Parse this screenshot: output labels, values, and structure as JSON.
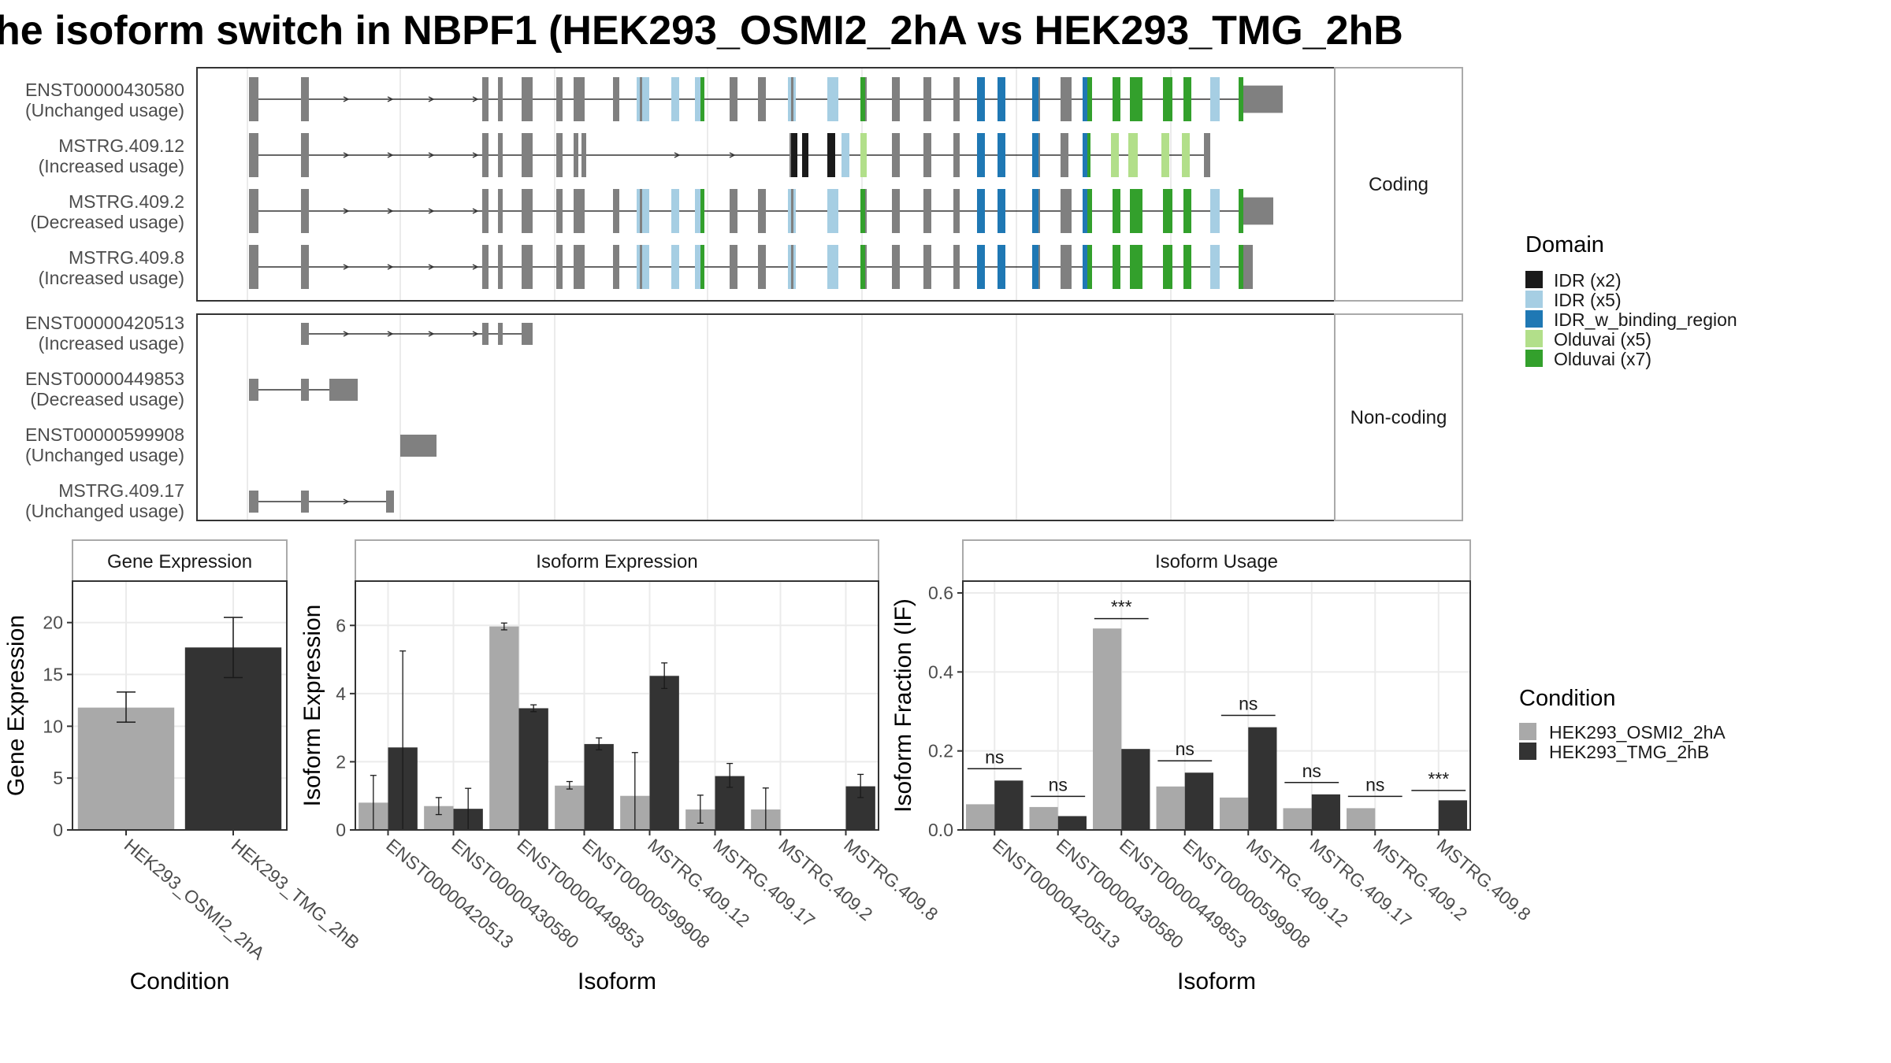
{
  "title": "he isoform switch in NBPF1 (HEK293_OSMI2_2hA vs HEK293_TMG_2hB",
  "colors": {
    "condA": "#a9a9a9",
    "condB": "#333333",
    "exon": "#808080",
    "intron": "#333333",
    "panel_border": "#333333",
    "strip_border": "#aaaaaa",
    "grid": "#ebebeb"
  },
  "legend_domain": {
    "title": "Domain",
    "items": [
      {
        "label": "IDR (x2)",
        "color": "#1a1a1a"
      },
      {
        "label": "IDR (x5)",
        "color": "#a6cee3"
      },
      {
        "label": "IDR_w_binding_region",
        "color": "#1f78b4"
      },
      {
        "label": "Olduvai (x5)",
        "color": "#b2df8a"
      },
      {
        "label": "Olduvai (x7)",
        "color": "#33a02c"
      }
    ]
  },
  "legend_condition": {
    "title": "Condition",
    "items": [
      {
        "label": "HEK293_OSMI2_2hA",
        "color": "#a9a9a9"
      },
      {
        "label": "HEK293_TMG_2hB",
        "color": "#333333"
      }
    ]
  },
  "structure_panels": {
    "coding_label": "Coding",
    "noncoding_label": "Non-coding",
    "coding": [
      {
        "name": "ENST00000430580",
        "usage": "(Unchanged usage)"
      },
      {
        "name": "MSTRG.409.12",
        "usage": "(Increased usage)"
      },
      {
        "name": "MSTRG.409.2",
        "usage": "(Decreased usage)"
      },
      {
        "name": "MSTRG.409.8",
        "usage": "(Increased usage)"
      }
    ],
    "noncoding": [
      {
        "name": "ENST00000420513",
        "usage": "(Increased usage)"
      },
      {
        "name": "ENST00000449853",
        "usage": "(Decreased usage)"
      },
      {
        "name": "ENST00000599908",
        "usage": "(Unchanged usage)"
      },
      {
        "name": "MSTRG.409.17",
        "usage": "(Unchanged usage)"
      }
    ]
  },
  "chart_data": [
    {
      "type": "bar",
      "strip": "Gene Expression",
      "xlabel": "Condition",
      "ylabel": "Gene Expression",
      "ylim": [
        0,
        24
      ],
      "yticks": [
        0,
        5,
        10,
        15,
        20
      ],
      "categories": [
        "HEK293_OSMI2_2hA",
        "HEK293_TMG_2hB"
      ],
      "values": [
        11.8,
        17.6
      ],
      "errors": [
        [
          10.4,
          13.3
        ],
        [
          14.7,
          20.5
        ]
      ]
    },
    {
      "type": "bar",
      "strip": "Isoform Expression",
      "xlabel": "Isoform",
      "ylabel": "Isoform Expression",
      "ylim": [
        0,
        7.3
      ],
      "yticks": [
        0,
        2,
        4,
        6
      ],
      "categories": [
        "ENST00000420513",
        "ENST00000430580",
        "ENST00000449853",
        "ENST00000599908",
        "MSTRG.409.12",
        "MSTRG.409.17",
        "MSTRG.409.2",
        "MSTRG.409.8"
      ],
      "series": [
        {
          "name": "HEK293_OSMI2_2hA",
          "values": [
            0.8,
            0.7,
            5.97,
            1.3,
            1.0,
            0.6,
            0.6,
            0.0
          ],
          "errors": [
            [
              0.0,
              1.6
            ],
            [
              0.45,
              0.95
            ],
            [
              5.87,
              6.07
            ],
            [
              1.2,
              1.42
            ],
            [
              0.0,
              2.27
            ],
            [
              0.2,
              1.02
            ],
            [
              0.0,
              1.23
            ],
            [
              0.0,
              0.0
            ]
          ]
        },
        {
          "name": "HEK293_TMG_2hB",
          "values": [
            2.42,
            0.62,
            3.57,
            2.52,
            4.52,
            1.58,
            0.0,
            1.28
          ],
          "errors": [
            [
              0.0,
              5.25
            ],
            [
              0.0,
              1.22
            ],
            [
              3.47,
              3.67
            ],
            [
              2.35,
              2.7
            ],
            [
              4.15,
              4.9
            ],
            [
              1.25,
              1.95
            ],
            [
              0.0,
              0.0
            ],
            [
              0.95,
              1.63
            ]
          ]
        }
      ]
    },
    {
      "type": "bar",
      "strip": "Isoform Usage",
      "xlabel": "Isoform",
      "ylabel": "Isoform Fraction (IF)",
      "ylim": [
        0,
        0.63
      ],
      "yticks": [
        "0.0",
        "0.2",
        "0.4",
        "0.6"
      ],
      "categories": [
        "ENST00000420513",
        "ENST00000430580",
        "ENST00000449853",
        "ENST00000599908",
        "MSTRG.409.12",
        "MSTRG.409.17",
        "MSTRG.409.2",
        "MSTRG.409.8"
      ],
      "series": [
        {
          "name": "HEK293_OSMI2_2hA",
          "values": [
            0.065,
            0.058,
            0.51,
            0.11,
            0.082,
            0.055,
            0.055,
            0.0
          ]
        },
        {
          "name": "HEK293_TMG_2hB",
          "values": [
            0.125,
            0.035,
            0.205,
            0.145,
            0.26,
            0.09,
            0.0,
            0.075
          ]
        }
      ],
      "significance": [
        "ns",
        "ns",
        "***",
        "ns",
        "ns",
        "ns",
        "ns",
        "***"
      ],
      "sig_levels": [
        0.155,
        0.085,
        0.535,
        0.175,
        0.29,
        0.12,
        0.085,
        0.1
      ]
    }
  ]
}
